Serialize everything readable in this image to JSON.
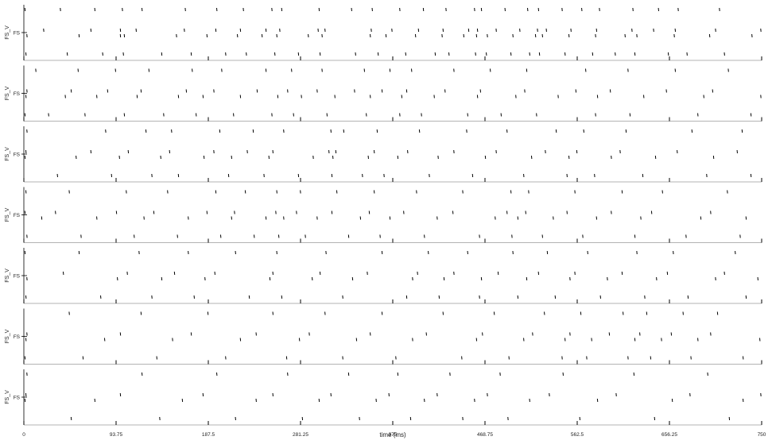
{
  "figure": {
    "xlabel": "time (ms)",
    "xlim": [
      0,
      750
    ],
    "x_ticks": [
      "0",
      "93.75",
      "187.5",
      "281.25",
      "375",
      "468.75",
      "562.5",
      "656.25",
      "750"
    ],
    "colors": {
      "spike": "#000000",
      "axis": "#000000",
      "grid": "#dcdcdc"
    }
  },
  "chart_data": [
    {
      "type": "raster",
      "panel": 1,
      "ylabel": "FS_V",
      "ytick": "FS",
      "xlim": [
        0,
        750
      ],
      "spikes_ms": [
        1,
        2,
        3,
        20,
        37,
        44,
        56,
        68,
        72,
        80,
        98,
        98,
        100,
        101,
        102,
        114,
        120,
        140,
        155,
        163,
        164,
        170,
        186,
        195,
        196,
        205,
        217,
        220,
        223,
        226,
        242,
        246,
        252,
        255,
        257,
        260,
        262,
        279,
        289,
        299,
        300,
        301,
        303,
        306,
        333,
        337,
        352,
        353,
        354,
        360,
        368,
        374,
        382,
        388,
        398,
        401,
        406,
        418,
        425,
        426,
        429,
        432,
        447,
        452,
        458,
        459,
        460,
        461,
        465,
        470,
        471,
        480,
        489,
        495,
        497,
        504,
        512,
        514,
        520,
        522,
        523,
        524,
        527,
        531,
        547,
        550,
        554,
        556,
        567,
        578,
        581,
        582,
        585,
        601,
        611,
        618,
        619,
        621,
        623,
        640,
        645,
        655,
        661,
        662,
        665,
        674,
        697,
        703,
        707,
        712,
        740,
        749
      ]
    },
    {
      "type": "raster",
      "panel": 2,
      "ylabel": "FS_V",
      "ytick": "FS",
      "xlim": [
        0,
        750
      ],
      "spikes_ms": [
        1,
        2,
        3,
        12,
        25,
        42,
        48,
        55,
        62,
        74,
        85,
        93,
        102,
        115,
        119,
        127,
        142,
        157,
        165,
        171,
        175,
        182,
        193,
        201,
        213,
        220,
        237,
        246,
        252,
        258,
        268,
        272,
        274,
        282,
        298,
        303,
        308,
        316,
        336,
        346,
        348,
        352,
        364,
        372,
        382,
        384,
        389,
        394,
        404,
        417,
        428,
        437,
        451,
        461,
        464,
        474,
        485,
        500,
        509,
        511,
        521,
        543,
        561,
        571,
        581,
        583,
        596,
        614,
        616,
        630,
        653,
        662,
        685,
        691,
        700,
        716,
        739,
        749
      ]
    },
    {
      "type": "raster",
      "panel": 3,
      "ylabel": "FS_V",
      "ytick": "FS",
      "xlim": [
        0,
        750
      ],
      "spikes_ms": [
        1,
        2,
        3,
        34,
        53,
        68,
        83,
        89,
        97,
        106,
        124,
        130,
        139,
        148,
        150,
        157,
        183,
        193,
        199,
        208,
        211,
        227,
        233,
        244,
        249,
        253,
        264,
        279,
        294,
        310,
        312,
        313,
        314,
        317,
        325,
        344,
        350,
        356,
        359,
        366,
        380,
        390,
        402,
        412,
        421,
        437,
        450,
        456,
        469,
        480,
        491,
        508,
        516,
        530,
        541,
        552,
        554,
        562,
        569,
        580,
        597,
        606,
        612,
        629,
        642,
        664,
        679,
        694,
        701,
        725,
        730,
        739
      ]
    },
    {
      "type": "raster",
      "panel": 4,
      "ylabel": "FS_V",
      "ytick": "FS",
      "xlim": [
        0,
        750
      ],
      "spikes_ms": [
        1,
        2,
        3,
        18,
        32,
        46,
        58,
        74,
        94,
        104,
        112,
        122,
        132,
        146,
        156,
        167,
        186,
        195,
        200,
        211,
        214,
        225,
        234,
        246,
        256,
        257,
        259,
        264,
        277,
        281,
        286,
        298,
        313,
        318,
        330,
        342,
        351,
        356,
        362,
        372,
        386,
        399,
        407,
        420,
        436,
        446,
        463,
        479,
        491,
        495,
        496,
        502,
        510,
        513,
        527,
        538,
        552,
        560,
        568,
        582,
        597,
        608,
        621,
        627,
        638,
        649,
        673,
        688,
        698,
        715,
        728,
        734
      ]
    },
    {
      "type": "raster",
      "panel": 5,
      "ylabel": "FS_V",
      "ytick": "FS",
      "xlim": [
        0,
        750
      ],
      "spikes_ms": [
        1,
        2,
        3,
        40,
        56,
        78,
        95,
        105,
        117,
        130,
        140,
        153,
        167,
        173,
        184,
        194,
        215,
        229,
        250,
        253,
        257,
        262,
        293,
        301,
        307,
        324,
        334,
        349,
        364,
        389,
        395,
        400,
        411,
        422,
        427,
        437,
        451,
        463,
        465,
        482,
        497,
        502,
        511,
        523,
        532,
        540,
        555,
        560,
        573,
        586,
        593,
        608,
        623,
        631,
        643,
        654,
        660,
        675,
        703,
        712,
        723,
        734,
        746
      ]
    },
    {
      "type": "raster",
      "panel": 6,
      "ylabel": "FS_V",
      "ytick": "FS",
      "xlim": [
        0,
        750
      ],
      "spikes_ms": [
        1,
        2,
        3,
        46,
        60,
        82,
        98,
        119,
        135,
        151,
        170,
        187,
        205,
        220,
        236,
        253,
        267,
        280,
        290,
        306,
        324,
        338,
        352,
        364,
        378,
        395,
        409,
        426,
        445,
        460,
        466,
        478,
        493,
        508,
        517,
        529,
        547,
        550,
        555,
        566,
        572,
        577,
        595,
        609,
        614,
        621,
        626,
        633,
        637,
        648,
        658,
        670,
        678,
        685,
        698,
        705,
        731,
        748
      ]
    },
    {
      "type": "raster",
      "panel": 7,
      "ylabel": "FS_V",
      "ytick": "FS",
      "xlim": [
        0,
        750
      ],
      "spikes_ms": [
        1,
        2,
        3,
        48,
        72,
        98,
        120,
        138,
        161,
        182,
        196,
        215,
        236,
        253,
        268,
        283,
        300,
        312,
        330,
        341,
        358,
        371,
        380,
        393,
        407,
        420,
        433,
        446,
        458,
        471,
        484,
        492,
        514,
        534,
        548,
        565,
        583,
        602,
        620,
        641,
        659,
        677,
        695,
        717,
        731,
        749
      ]
    }
  ]
}
